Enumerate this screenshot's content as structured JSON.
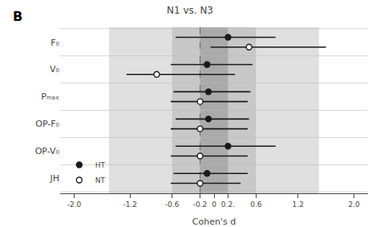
{
  "chart_data": {
    "type": "forest",
    "title": "N1 vs. N3",
    "x_label": "Cohen's d",
    "annotations": [
      {
        "text": "B"
      }
    ],
    "categories": [
      "F₀",
      "V₀",
      "Pₘₐₓ",
      "OP-F₀",
      "OP-V₀",
      "JH"
    ],
    "series": [
      {
        "name": "HT",
        "color": "#1a1a1a",
        "marker": "filled",
        "values": [
          0.2,
          -0.1,
          -0.08,
          -0.08,
          0.2,
          -0.1
        ],
        "ci_low": [
          -0.55,
          -0.62,
          -0.58,
          -0.55,
          -0.55,
          -0.58
        ],
        "ci_high": [
          0.88,
          0.55,
          0.52,
          0.5,
          0.88,
          0.48
        ]
      },
      {
        "name": "NT",
        "color": "#1a1a1a",
        "marker": "open",
        "values": [
          0.5,
          -0.82,
          -0.2,
          -0.2,
          -0.2,
          -0.2
        ],
        "ci_low": [
          -0.05,
          -1.25,
          -0.62,
          -0.62,
          -0.62,
          -0.62
        ],
        "ci_high": [
          1.6,
          0.3,
          0.48,
          0.48,
          0.48,
          0.38
        ]
      }
    ],
    "bands": [
      {
        "x": [
          -1.5,
          1.5
        ],
        "color": "#e0e0e0"
      },
      {
        "x": [
          -0.6,
          0.6
        ],
        "color": "#c8c8c8"
      },
      {
        "x": [
          -0.2,
          0.2
        ],
        "color": "#aaaaaa"
      }
    ],
    "reference_line": -0.2,
    "xlim": [
      -2.2,
      2.2
    ],
    "xticks": [
      {
        "value": -2.0,
        "label": "-2.0"
      },
      -1.2,
      -0.6,
      -0.2,
      0,
      0.2,
      0.6,
      1.2,
      {
        "value": 2.0,
        "label": "2.0"
      },
      {
        "value": 0.2,
        "label": "0.2."
      }
    ],
    "grid": false,
    "legend": "lower left"
  }
}
